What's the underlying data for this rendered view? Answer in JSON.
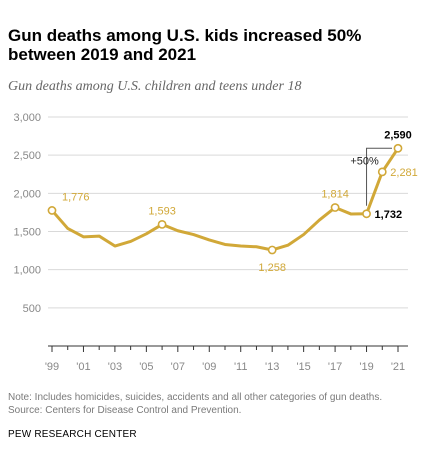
{
  "title": "Gun deaths among U.S. kids increased 50% between 2019 and 2021",
  "subtitle": "Gun deaths among U.S. children and teens under 18",
  "note": "Note: Includes homicides, suicides, accidents and all other categories of gun deaths.",
  "source": "Source: Centers for Disease Control and Prevention.",
  "brand": "PEW RESEARCH CENTER",
  "colors": {
    "line": "#d1a838",
    "gridline": "#d9d9d9",
    "label_highlight": "#000000",
    "label_muted": "#d1a838",
    "axis_text": "#888888"
  },
  "chart_data": {
    "type": "line",
    "title": "",
    "xlabel": "",
    "ylabel": "",
    "x": [
      1999,
      2000,
      2001,
      2002,
      2003,
      2004,
      2005,
      2006,
      2007,
      2008,
      2009,
      2010,
      2011,
      2012,
      2013,
      2014,
      2015,
      2016,
      2017,
      2018,
      2019,
      2020,
      2021
    ],
    "series": [
      {
        "values": [
          1776,
          1540,
          1430,
          1440,
          1310,
          1370,
          1470,
          1593,
          1510,
          1460,
          1390,
          1330,
          1310,
          1300,
          1258,
          1320,
          1460,
          1650,
          1814,
          1730,
          1732,
          2281,
          2590
        ]
      }
    ],
    "ylim": [
      0,
      3000
    ],
    "yticks": [
      500,
      1000,
      1500,
      2000,
      2500,
      3000
    ],
    "ytick_labels": [
      "500",
      "1,000",
      "1,500",
      "2,000",
      "2,500",
      "3,000"
    ],
    "xtick_years": [
      1999,
      2001,
      2003,
      2005,
      2007,
      2009,
      2011,
      2013,
      2015,
      2017,
      2019,
      2021
    ],
    "xtick_labels": [
      "'99",
      "'01",
      "'03",
      "'05",
      "'07",
      "'09",
      "'11",
      "'13",
      "'15",
      "'17",
      "'19",
      "'21"
    ],
    "grid": true,
    "annotations": [
      {
        "x": 1999,
        "value": 1776,
        "text": "1,776",
        "style": "muted",
        "place": "right"
      },
      {
        "x": 2006,
        "value": 1593,
        "text": "1,593",
        "style": "muted",
        "place": "above"
      },
      {
        "x": 2013,
        "value": 1258,
        "text": "1,258",
        "style": "muted",
        "place": "below"
      },
      {
        "x": 2017,
        "value": 1814,
        "text": "1,814",
        "style": "muted",
        "place": "above"
      },
      {
        "x": 2019,
        "value": 1732,
        "text": "1,732",
        "style": "bold",
        "place": "right"
      },
      {
        "x": 2020,
        "value": 2281,
        "text": "2,281",
        "style": "muted",
        "place": "right"
      },
      {
        "x": 2021,
        "value": 2590,
        "text": "2,590",
        "style": "bold",
        "place": "above"
      }
    ],
    "change_label": {
      "from_x": 2019,
      "to_x": 2021,
      "text": "+50%"
    }
  }
}
